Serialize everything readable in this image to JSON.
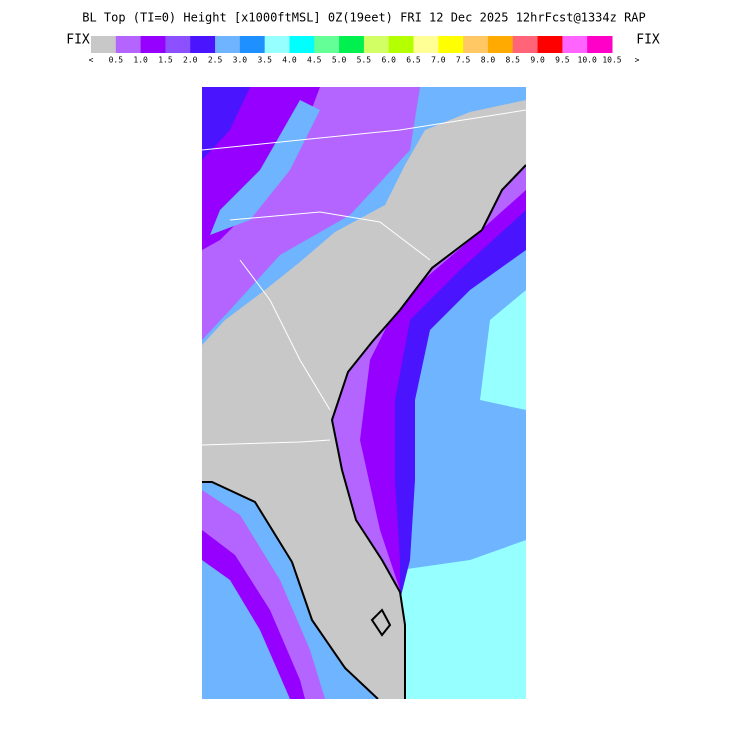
{
  "header": {
    "title": "BL Top (TI=0) Height [x1000ftMSL] 0Z(19eet) FRI 12 Dec 2025 12hrFcst@1334z RAP"
  },
  "colorbar": {
    "left_label": "FIX",
    "right_label": "FIX",
    "low_arrow": "<",
    "high_arrow": ">",
    "colors": [
      "#c8c8c8",
      "#b464ff",
      "#9600fe",
      "#8c50ff",
      "#4b14ff",
      "#6eb4ff",
      "#1e90ff",
      "#96ffff",
      "#00ffff",
      "#64ff96",
      "#00f050",
      "#d2ff64",
      "#b4ff00",
      "#ffff96",
      "#ffff00",
      "#ffc864",
      "#ffaa00",
      "#ff6478",
      "#ff0000",
      "#ff64ff",
      "#ff00c8"
    ],
    "labels": [
      "0.5",
      "1.0",
      "1.5",
      "2.0",
      "2.5",
      "3.0",
      "3.5",
      "4.0",
      "4.5",
      "5.0",
      "5.5",
      "6.0",
      "6.5",
      "7.0",
      "7.5",
      "8.0",
      "8.5",
      "9.0",
      "9.5",
      "10.0",
      "10.5"
    ]
  }
}
